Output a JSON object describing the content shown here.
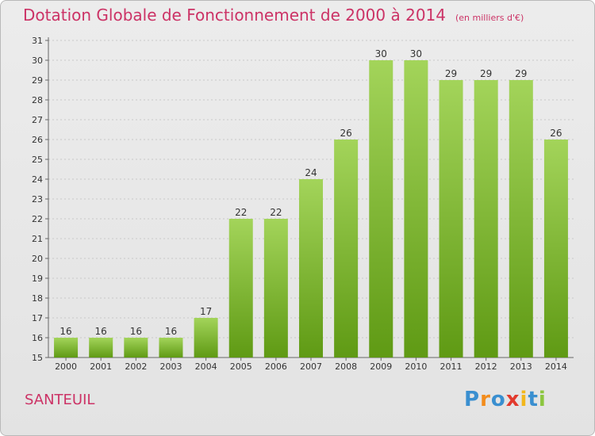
{
  "header": {
    "title": "Dotation Globale de Fonctionnement de 2000 à 2014",
    "unit": "(en milliers d'€)"
  },
  "footer": {
    "commune": "SANTEUIL",
    "logo": "Proxiti"
  },
  "colors": {
    "title": "#cc3366",
    "bar_light": "#a3d45a",
    "bar_dark": "#5f9a14",
    "logo": [
      "#3a8fd0",
      "#f28c1c",
      "#3a8fd0",
      "#e23a2d",
      "#f2b71c",
      "#3a8fd0",
      "#8cc63f"
    ]
  },
  "chart_data": {
    "type": "bar",
    "title": "Dotation Globale de Fonctionnement de 2000 à 2014",
    "subtitle": "(en milliers d'€)",
    "xlabel": "",
    "ylabel": "",
    "categories": [
      "2000",
      "2001",
      "2002",
      "2003",
      "2004",
      "2005",
      "2006",
      "2007",
      "2008",
      "2009",
      "2010",
      "2011",
      "2012",
      "2013",
      "2014"
    ],
    "values": [
      16,
      16,
      16,
      16,
      17,
      22,
      22,
      24,
      26,
      30,
      30,
      29,
      29,
      29,
      26
    ],
    "ylim": [
      15,
      31
    ],
    "yticks": [
      15,
      16,
      17,
      18,
      19,
      20,
      21,
      22,
      23,
      24,
      25,
      26,
      27,
      28,
      29,
      30,
      31
    ],
    "grid": true,
    "legend": "none"
  }
}
